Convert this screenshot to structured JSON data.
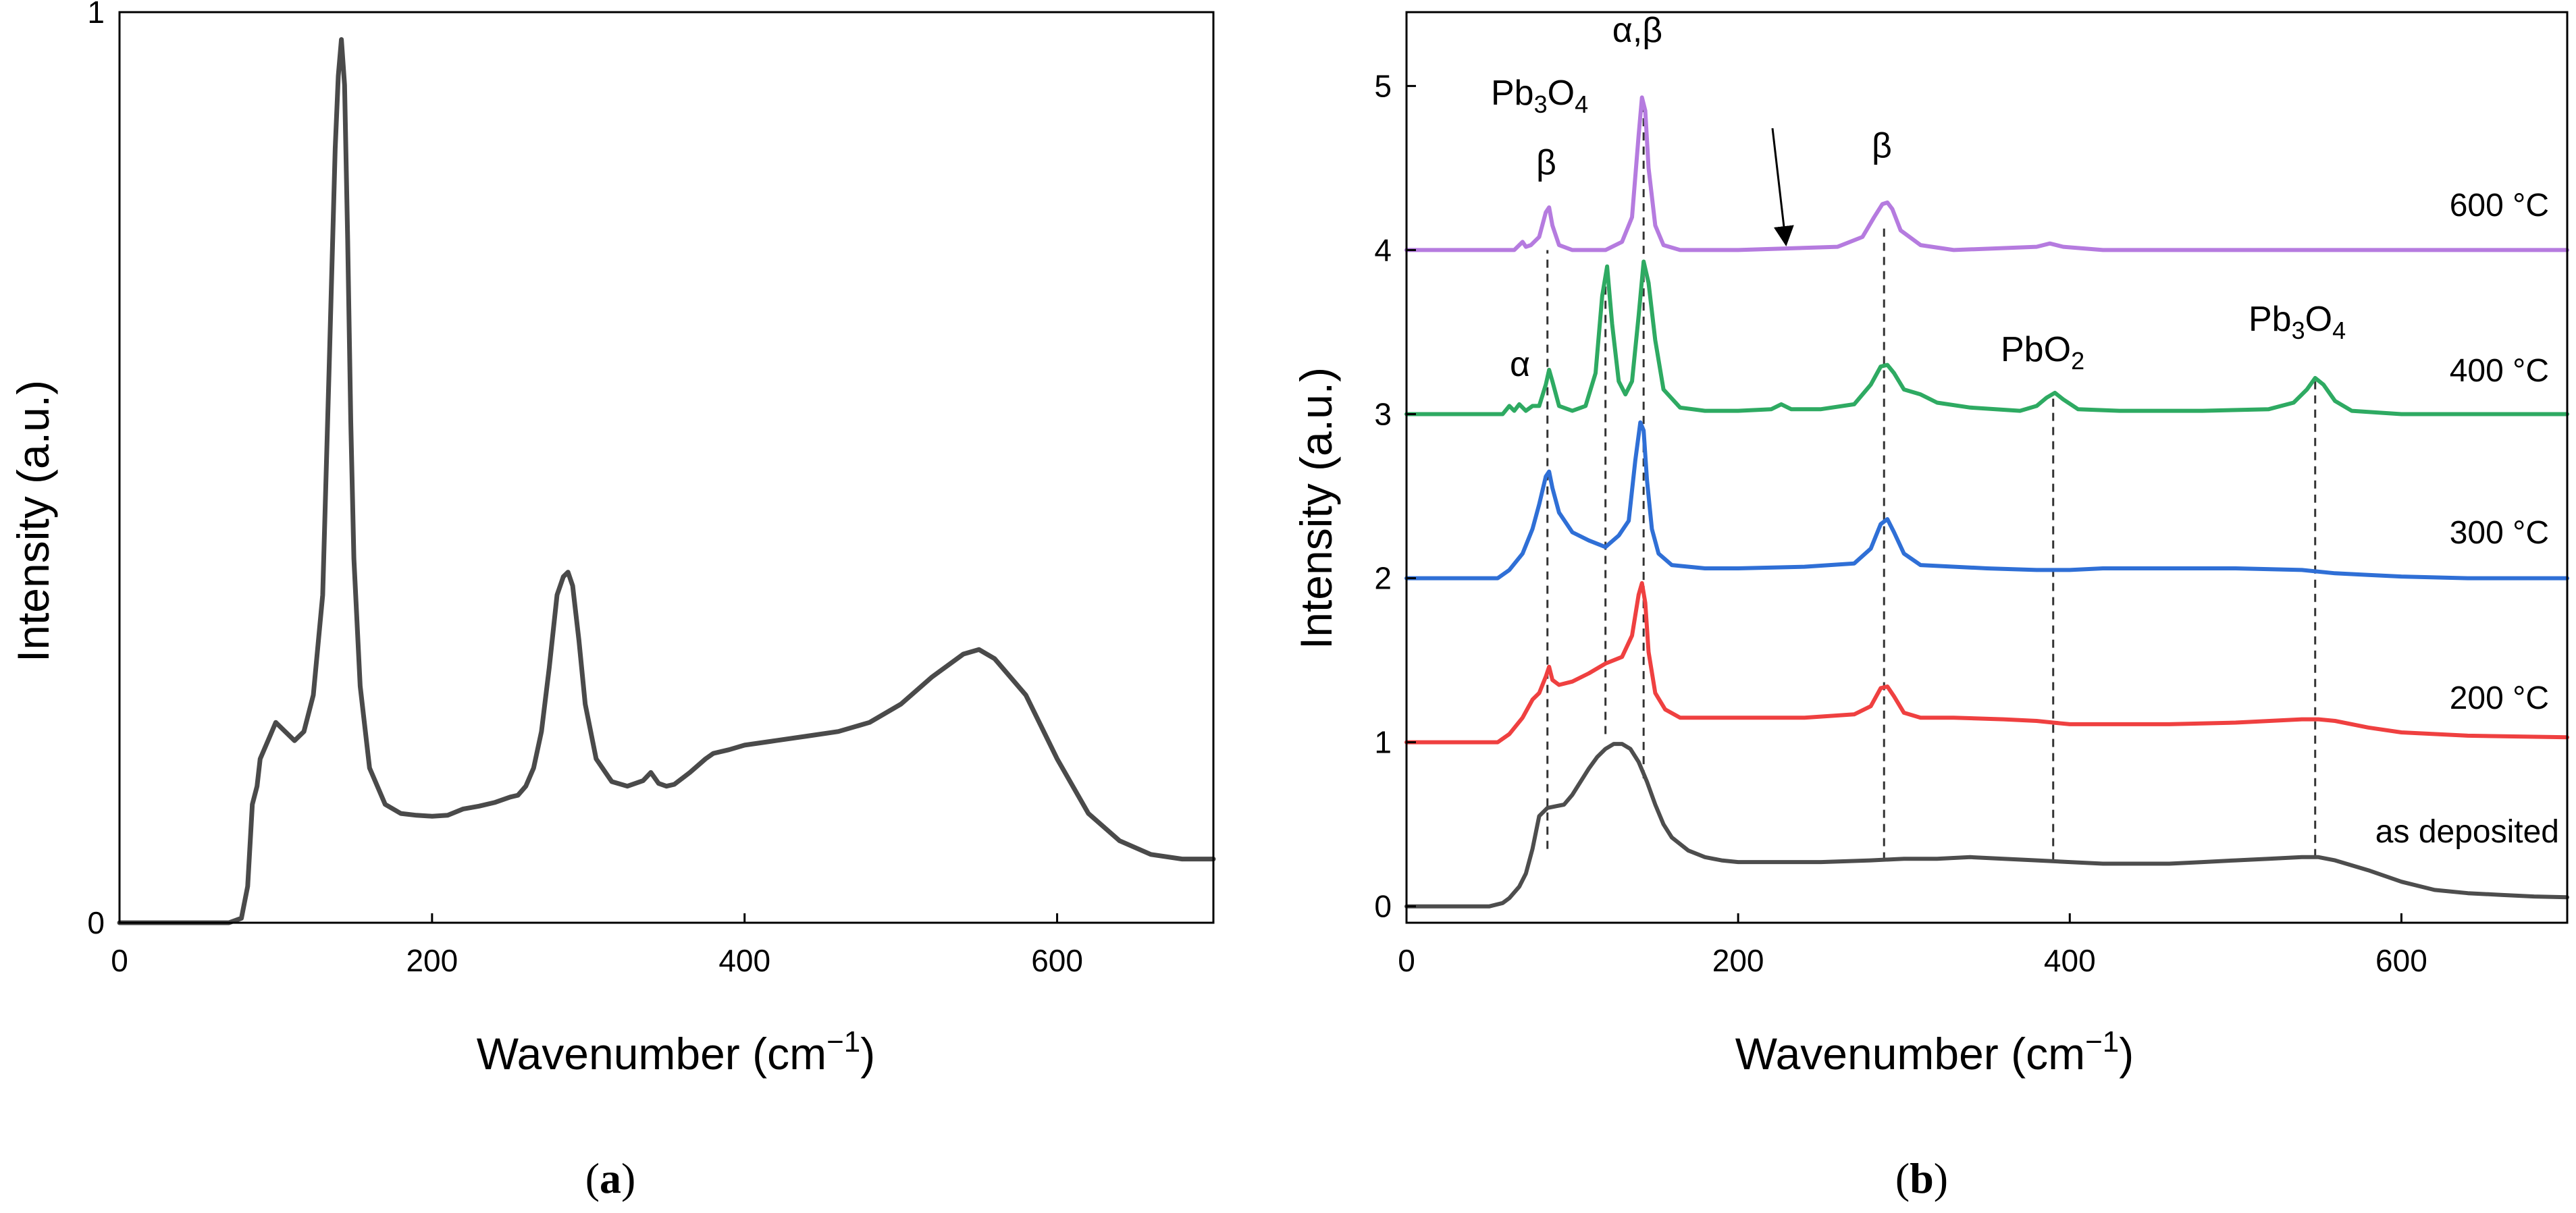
{
  "chart_data": [
    {
      "id": "a",
      "type": "line",
      "caption_letter": "a",
      "xlabel": "Wavenumber (cm",
      "xlabel_sup": "−1",
      "xlabel_end": ")",
      "ylabel": "Intensity (a.u.)",
      "xlim": [
        0,
        700
      ],
      "ylim": [
        0,
        1
      ],
      "xticks": [
        0,
        200,
        400,
        600
      ],
      "yticks": [
        0,
        1
      ],
      "color": "#4a4a4a",
      "series": [
        {
          "name": "spectrum",
          "x": [
            0,
            70,
            78,
            82,
            85,
            88,
            90,
            95,
            100,
            106,
            112,
            118,
            124,
            130,
            134,
            138,
            140,
            142,
            144,
            146,
            148,
            150,
            154,
            160,
            170,
            180,
            190,
            200,
            210,
            220,
            230,
            240,
            250,
            255,
            260,
            265,
            270,
            275,
            280,
            284,
            287,
            290,
            294,
            298,
            305,
            315,
            325,
            335,
            340,
            345,
            350,
            355,
            365,
            375,
            380,
            390,
            400,
            420,
            440,
            460,
            480,
            500,
            520,
            540,
            550,
            560,
            580,
            600,
            620,
            640,
            660,
            680,
            700
          ],
          "y": [
            0,
            0,
            0.005,
            0.04,
            0.13,
            0.15,
            0.18,
            0.2,
            0.22,
            0.21,
            0.2,
            0.21,
            0.25,
            0.36,
            0.6,
            0.85,
            0.93,
            0.97,
            0.92,
            0.75,
            0.55,
            0.4,
            0.26,
            0.17,
            0.13,
            0.12,
            0.118,
            0.117,
            0.118,
            0.125,
            0.128,
            0.132,
            0.138,
            0.14,
            0.15,
            0.17,
            0.21,
            0.28,
            0.36,
            0.38,
            0.385,
            0.37,
            0.31,
            0.24,
            0.18,
            0.155,
            0.15,
            0.156,
            0.165,
            0.153,
            0.15,
            0.152,
            0.165,
            0.18,
            0.186,
            0.19,
            0.195,
            0.2,
            0.205,
            0.21,
            0.22,
            0.24,
            0.27,
            0.295,
            0.3,
            0.29,
            0.25,
            0.18,
            0.12,
            0.09,
            0.075,
            0.07,
            0.07
          ]
        }
      ]
    },
    {
      "id": "b",
      "type": "line",
      "caption_letter": "b",
      "xlabel": "Wavenumber (cm",
      "xlabel_sup": "−1",
      "xlabel_end": ")",
      "ylabel": "Intensity (a.u.)",
      "xlim": [
        0,
        700
      ],
      "ylim": [
        -0.1,
        5.45
      ],
      "xticks": [
        0,
        200,
        400,
        600
      ],
      "yticks": [
        0,
        1,
        2,
        3,
        4,
        5
      ],
      "series": [
        {
          "name": "as deposited",
          "color": "#4d4d4d",
          "x": [
            0,
            50,
            58,
            62,
            68,
            72,
            76,
            80,
            85,
            90,
            95,
            100,
            105,
            110,
            115,
            120,
            125,
            130,
            135,
            140,
            145,
            150,
            155,
            160,
            170,
            180,
            190,
            200,
            220,
            250,
            280,
            300,
            320,
            340,
            360,
            380,
            400,
            420,
            440,
            460,
            480,
            500,
            520,
            540,
            550,
            560,
            580,
            600,
            620,
            640,
            660,
            680,
            700
          ],
          "y": [
            0,
            0,
            0.02,
            0.05,
            0.12,
            0.2,
            0.35,
            0.55,
            0.6,
            0.61,
            0.62,
            0.68,
            0.76,
            0.84,
            0.91,
            0.96,
            0.99,
            0.99,
            0.96,
            0.88,
            0.76,
            0.62,
            0.5,
            0.42,
            0.34,
            0.3,
            0.28,
            0.27,
            0.27,
            0.27,
            0.28,
            0.29,
            0.29,
            0.3,
            0.29,
            0.28,
            0.27,
            0.26,
            0.26,
            0.26,
            0.27,
            0.28,
            0.29,
            0.3,
            0.3,
            0.28,
            0.22,
            0.15,
            0.1,
            0.08,
            0.07,
            0.06,
            0.055
          ]
        },
        {
          "name": "200 °C",
          "color": "#ef4040",
          "x": [
            0,
            55,
            62,
            70,
            76,
            80,
            84,
            86,
            88,
            92,
            100,
            110,
            120,
            130,
            136,
            140,
            142,
            144,
            146,
            150,
            156,
            165,
            180,
            200,
            240,
            270,
            280,
            286,
            290,
            294,
            300,
            310,
            330,
            360,
            380,
            390,
            400,
            420,
            460,
            500,
            540,
            550,
            560,
            580,
            600,
            640,
            700
          ],
          "y": [
            1.0,
            1.0,
            1.05,
            1.15,
            1.26,
            1.3,
            1.4,
            1.46,
            1.38,
            1.35,
            1.37,
            1.42,
            1.48,
            1.52,
            1.65,
            1.9,
            1.97,
            1.85,
            1.55,
            1.3,
            1.2,
            1.15,
            1.15,
            1.15,
            1.15,
            1.17,
            1.22,
            1.33,
            1.34,
            1.28,
            1.18,
            1.15,
            1.15,
            1.14,
            1.13,
            1.12,
            1.11,
            1.11,
            1.11,
            1.12,
            1.14,
            1.14,
            1.13,
            1.09,
            1.06,
            1.04,
            1.03
          ]
        },
        {
          "name": "300 °C",
          "color": "#2f6fd6",
          "x": [
            0,
            55,
            62,
            70,
            76,
            80,
            84,
            86,
            88,
            92,
            100,
            110,
            120,
            128,
            134,
            138,
            141,
            143,
            145,
            148,
            152,
            160,
            180,
            200,
            240,
            270,
            280,
            286,
            290,
            294,
            300,
            310,
            350,
            380,
            390,
            400,
            420,
            460,
            500,
            540,
            560,
            580,
            600,
            640,
            700
          ],
          "y": [
            2.0,
            2.0,
            2.05,
            2.15,
            2.3,
            2.45,
            2.62,
            2.65,
            2.55,
            2.4,
            2.28,
            2.23,
            2.19,
            2.26,
            2.35,
            2.72,
            2.95,
            2.9,
            2.6,
            2.3,
            2.15,
            2.08,
            2.06,
            2.06,
            2.07,
            2.09,
            2.18,
            2.33,
            2.36,
            2.28,
            2.15,
            2.08,
            2.06,
            2.05,
            2.05,
            2.05,
            2.06,
            2.06,
            2.06,
            2.05,
            2.03,
            2.02,
            2.01,
            2.0,
            2.0
          ]
        },
        {
          "name": "400 °C",
          "color": "#2eaa62",
          "x": [
            0,
            58,
            62,
            65,
            68,
            72,
            76,
            80,
            84,
            86,
            88,
            92,
            100,
            108,
            114,
            118,
            121,
            124,
            128,
            132,
            136,
            140,
            143,
            146,
            150,
            155,
            165,
            180,
            200,
            220,
            226,
            232,
            250,
            270,
            280,
            286,
            290,
            294,
            300,
            310,
            320,
            340,
            370,
            380,
            386,
            391,
            396,
            405,
            430,
            480,
            520,
            535,
            543,
            548,
            553,
            560,
            570,
            600,
            650,
            700
          ],
          "y": [
            3.0,
            3.0,
            3.05,
            3.02,
            3.06,
            3.02,
            3.05,
            3.05,
            3.18,
            3.27,
            3.2,
            3.05,
            3.02,
            3.05,
            3.25,
            3.72,
            3.9,
            3.55,
            3.2,
            3.12,
            3.2,
            3.6,
            3.93,
            3.8,
            3.45,
            3.15,
            3.04,
            3.02,
            3.02,
            3.03,
            3.06,
            3.03,
            3.03,
            3.06,
            3.18,
            3.29,
            3.3,
            3.25,
            3.15,
            3.12,
            3.07,
            3.04,
            3.02,
            3.05,
            3.1,
            3.13,
            3.09,
            3.03,
            3.02,
            3.02,
            3.03,
            3.07,
            3.15,
            3.22,
            3.18,
            3.08,
            3.02,
            3.0,
            3.0,
            3.0
          ]
        },
        {
          "name": "600 °C",
          "color": "#b57bdf",
          "x": [
            0,
            65,
            70,
            72,
            75,
            80,
            84,
            86,
            88,
            92,
            100,
            120,
            130,
            136,
            140,
            142,
            144,
            146,
            150,
            155,
            165,
            200,
            260,
            275,
            282,
            287,
            290,
            293,
            298,
            310,
            330,
            380,
            388,
            396,
            420,
            500,
            600,
            700
          ],
          "y": [
            4.0,
            4.0,
            4.05,
            4.02,
            4.03,
            4.08,
            4.23,
            4.26,
            4.15,
            4.03,
            4.0,
            4.0,
            4.05,
            4.2,
            4.7,
            4.93,
            4.85,
            4.5,
            4.15,
            4.03,
            4.0,
            4.0,
            4.02,
            4.08,
            4.2,
            4.28,
            4.29,
            4.25,
            4.12,
            4.03,
            4.0,
            4.02,
            4.04,
            4.02,
            4.0,
            4.0,
            4.0,
            4.0
          ]
        }
      ],
      "curve_labels": [
        "600 °C",
        "400 °C",
        "300 °C",
        "200 °C",
        "as deposited"
      ],
      "annotations": {
        "alpha_beta": "α,β",
        "beta_left": "β",
        "beta_right": "β",
        "alpha": "α",
        "pb3o4_top_main": "Pb",
        "pb3o4_top_sub1": "3",
        "pb3o4_top_mid": "O",
        "pb3o4_top_sub2": "4",
        "pbo2_main": "PbO",
        "pbo2_sub": "2",
        "pb3o4_right_main": "Pb",
        "pb3o4_right_sub1": "3",
        "pb3o4_right_mid": "O",
        "pb3o4_right_sub2": "4"
      },
      "dashed_lines_x": [
        85,
        120,
        143,
        288,
        390,
        548
      ]
    }
  ],
  "captions": {
    "a_open": "(",
    "a_letter": "a",
    "a_close": ")",
    "b_open": "(",
    "b_letter": "b",
    "b_close": ")"
  }
}
